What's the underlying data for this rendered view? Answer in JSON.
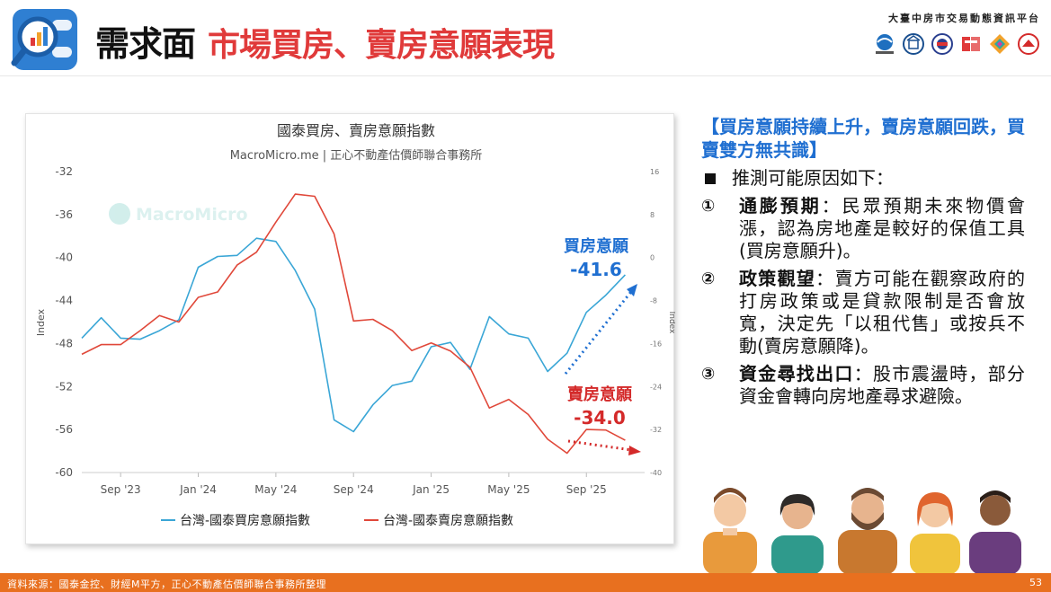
{
  "header": {
    "title_black": "需求面",
    "title_red": "市場買房、賣房意願表現",
    "platform_name": "大臺中房市交易動態資訊平台",
    "partner_logos": [
      "trda-logo",
      "building-logo",
      "government-seal-logo",
      "taichung-logo",
      "diamond-logo",
      "ctreaa-logo"
    ],
    "logo_icon": "magnifier-chart-icon"
  },
  "chart_data": {
    "type": "line",
    "title": "國泰買房、賣房意願指數",
    "subtitle": "MacroMicro.me | 正心不動產估價師聯合事務所",
    "watermark": "MacroMicro",
    "ylabel_left": "Index",
    "ylabel_right": "Index",
    "left_axis": {
      "ticks": [
        "-32",
        "-36",
        "-40",
        "-44",
        "-48",
        "-52",
        "-56",
        "-60"
      ],
      "ylim": [
        -60,
        -32
      ]
    },
    "right_axis": {
      "ticks": [
        "16",
        "8",
        "0",
        "-8",
        "-16",
        "-24",
        "-32",
        "-40"
      ],
      "ylim": [
        -40,
        16
      ]
    },
    "x_ticks": [
      "Sep '23",
      "Jan '24",
      "May '24",
      "Sep '24",
      "Jan '25",
      "May '25",
      "Sep '25"
    ],
    "x_range": [
      "2023-07",
      "2025-12"
    ],
    "series": [
      {
        "name": "台灣-國泰買房意願指數",
        "axis": "left",
        "color": "#3aa6d6",
        "points": [
          [
            "2023-07",
            -47.5
          ],
          [
            "2023-08",
            -45.6
          ],
          [
            "2023-09",
            -47.5
          ],
          [
            "2023-10",
            -47.6
          ],
          [
            "2023-11",
            -46.8
          ],
          [
            "2023-12",
            -45.8
          ],
          [
            "2024-01",
            -40.9
          ],
          [
            "2024-02",
            -39.9
          ],
          [
            "2024-03",
            -39.8
          ],
          [
            "2024-04",
            -38.2
          ],
          [
            "2024-05",
            -38.5
          ],
          [
            "2024-06",
            -41.2
          ],
          [
            "2024-07",
            -44.8
          ],
          [
            "2024-08",
            -55.1
          ],
          [
            "2024-09",
            -56.2
          ],
          [
            "2024-10",
            -53.7
          ],
          [
            "2024-11",
            -51.9
          ],
          [
            "2024-12",
            -51.5
          ],
          [
            "2025-01",
            -48.3
          ],
          [
            "2025-02",
            -47.9
          ],
          [
            "2025-03",
            -50.4
          ],
          [
            "2025-04",
            -45.5
          ],
          [
            "2025-05",
            -47.1
          ],
          [
            "2025-06",
            -47.5
          ],
          [
            "2025-07",
            -50.6
          ],
          [
            "2025-08",
            -48.9
          ],
          [
            "2025-09",
            -45.1
          ],
          [
            "2025-10",
            -43.5
          ],
          [
            "2025-11",
            -41.6
          ]
        ]
      },
      {
        "name": "台灣-國泰賣房意願指數",
        "axis": "right",
        "color": "#e0483a",
        "points": [
          [
            "2023-07",
            -18.0
          ],
          [
            "2023-08",
            -16.2
          ],
          [
            "2023-09",
            -16.2
          ],
          [
            "2023-10",
            -13.6
          ],
          [
            "2023-11",
            -10.8
          ],
          [
            "2023-12",
            -12.0
          ],
          [
            "2024-01",
            -7.4
          ],
          [
            "2024-02",
            -6.4
          ],
          [
            "2024-03",
            -1.4
          ],
          [
            "2024-04",
            1.0
          ],
          [
            "2024-05",
            6.6
          ],
          [
            "2024-06",
            11.8
          ],
          [
            "2024-07",
            11.4
          ],
          [
            "2024-08",
            4.4
          ],
          [
            "2024-09",
            -11.8
          ],
          [
            "2024-10",
            -11.5
          ],
          [
            "2024-11",
            -13.6
          ],
          [
            "2024-12",
            -17.3
          ],
          [
            "2025-01",
            -15.9
          ],
          [
            "2025-02",
            -17.4
          ],
          [
            "2025-03",
            -20.4
          ],
          [
            "2025-04",
            -28.0
          ],
          [
            "2025-05",
            -26.4
          ],
          [
            "2025-06",
            -29.2
          ],
          [
            "2025-07",
            -33.8
          ],
          [
            "2025-08",
            -36.4
          ],
          [
            "2025-09",
            -32.0
          ],
          [
            "2025-10",
            -32.1
          ],
          [
            "2025-11",
            -34.0
          ]
        ]
      }
    ],
    "annotations": [
      {
        "label": "買房意願",
        "value": "-41.6",
        "color": "#1f6fd1"
      },
      {
        "label": "賣房意願",
        "value": "-34.0",
        "color": "#d42a2a"
      }
    ],
    "legend_position": "bottom",
    "grid": false
  },
  "right_panel": {
    "headline": "【買房意願持續上升，賣房意願回跌，買賣雙方無共識】",
    "bullet": "推測可能原因如下：",
    "items": [
      {
        "num": "①",
        "keyword": "通膨預期",
        "sep": "：",
        "text": "民眾預期未來物價會漲，認為房地產是較好的保值工具(買房意願升)。"
      },
      {
        "num": "②",
        "keyword": "政策觀望",
        "sep": "：",
        "text": "賣方可能在觀察政府的打房政策或是貸款限制是否會放寬，決定先「以租代售」或按兵不動(賣房意願降)。"
      },
      {
        "num": "③",
        "keyword": "資金尋找出口",
        "sep": "：",
        "text": "股市震盪時，部分資金會轉向房地產尋求避險。"
      }
    ]
  },
  "footer": {
    "source": "資料來源：國泰金控、財經M平方，正心不動產估價師聯合事務所整理",
    "page": "53"
  },
  "colors": {
    "accent_red": "#e03a3a",
    "headline_blue": "#1f6fd1",
    "footer_orange": "#e8701f",
    "buy_line": "#3aa6d6",
    "sell_line": "#e0483a"
  }
}
